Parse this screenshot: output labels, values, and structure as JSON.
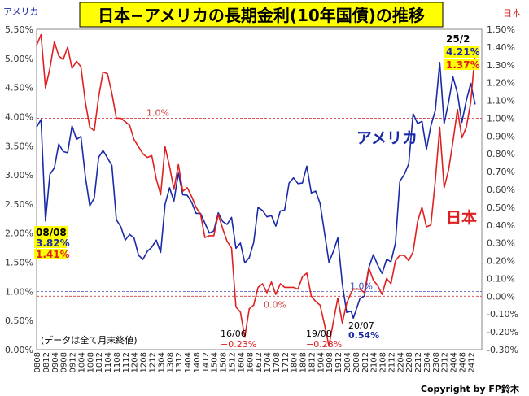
{
  "chart_data": {
    "type": "line",
    "title": "日本−アメリカの長期金利(10年国債)の推移",
    "left_axis_title": "アメリカ",
    "right_axis_title": "日本",
    "left_ylim": [
      0.0,
      5.5
    ],
    "right_ylim": [
      -0.3,
      1.5
    ],
    "left_ticks": [
      "0.00%",
      "0.50%",
      "1.00%",
      "1.50%",
      "2.00%",
      "2.50%",
      "3.00%",
      "3.50%",
      "4.00%",
      "4.50%",
      "5.00%",
      "5.50%"
    ],
    "right_ticks": [
      "-0.30%",
      "-0.20%",
      "-0.10%",
      "0.00%",
      "0.10%",
      "0.20%",
      "0.30%",
      "0.40%",
      "0.50%",
      "0.60%",
      "0.70%",
      "0.80%",
      "0.90%",
      "1.00%",
      "1.10%",
      "1.20%",
      "1.30%",
      "1.40%",
      "1.50%"
    ],
    "x_ticks": [
      "0808",
      "0812",
      "0904",
      "0908",
      "0912",
      "1004",
      "1008",
      "1012",
      "1104",
      "1108",
      "1112",
      "1204",
      "1208",
      "1212",
      "1304",
      "1308",
      "1312",
      "1404",
      "1408",
      "1412",
      "1504",
      "1508",
      "1512",
      "1604",
      "1608",
      "1612",
      "1704",
      "1708",
      "1712",
      "1804",
      "1808",
      "1812",
      "1904",
      "1908",
      "1912",
      "2004",
      "2008",
      "2012",
      "2104",
      "2108",
      "2112",
      "2204",
      "2208",
      "2212",
      "2304",
      "2308",
      "2312",
      "2404",
      "2408",
      "2412"
    ],
    "grid": false,
    "reference_lines": [
      {
        "label": "1.0%",
        "axis": "right",
        "value": 1.0,
        "color": "#d04040"
      },
      {
        "label": "1.0%",
        "axis": "left",
        "value": 1.0,
        "color": "#4050c0"
      },
      {
        "label": "0.0%",
        "axis": "right",
        "value": 0.0,
        "color": "#d04040"
      }
    ],
    "series": [
      {
        "name": "アメリカ",
        "axis": "left",
        "color": "#1a2aa8",
        "x": [
          "2008-08",
          "2008-10",
          "2008-12",
          "2009-02",
          "2009-04",
          "2009-06",
          "2009-08",
          "2009-10",
          "2009-12",
          "2010-02",
          "2010-04",
          "2010-06",
          "2010-08",
          "2010-10",
          "2010-12",
          "2011-02",
          "2011-04",
          "2011-06",
          "2011-08",
          "2011-10",
          "2011-12",
          "2012-02",
          "2012-04",
          "2012-06",
          "2012-08",
          "2012-10",
          "2012-12",
          "2013-02",
          "2013-04",
          "2013-06",
          "2013-08",
          "2013-10",
          "2013-12",
          "2014-02",
          "2014-04",
          "2014-06",
          "2014-08",
          "2014-10",
          "2014-12",
          "2015-02",
          "2015-04",
          "2015-06",
          "2015-08",
          "2015-10",
          "2015-12",
          "2016-02",
          "2016-04",
          "2016-06",
          "2016-08",
          "2016-10",
          "2016-12",
          "2017-02",
          "2017-04",
          "2017-06",
          "2017-08",
          "2017-10",
          "2017-12",
          "2018-02",
          "2018-04",
          "2018-06",
          "2018-08",
          "2018-10",
          "2018-12",
          "2019-02",
          "2019-04",
          "2019-06",
          "2019-08",
          "2019-10",
          "2019-12",
          "2020-02",
          "2020-04",
          "2020-06",
          "2020-07",
          "2020-10",
          "2020-12",
          "2021-02",
          "2021-04",
          "2021-06",
          "2021-08",
          "2021-10",
          "2021-12",
          "2022-02",
          "2022-04",
          "2022-06",
          "2022-08",
          "2022-10",
          "2022-12",
          "2023-02",
          "2023-04",
          "2023-06",
          "2023-08",
          "2023-10",
          "2023-12",
          "2024-02",
          "2024-04",
          "2024-06",
          "2024-08",
          "2024-10",
          "2024-12",
          "2025-02"
        ],
        "values": [
          3.82,
          3.95,
          2.21,
          3.01,
          3.12,
          3.53,
          3.4,
          3.38,
          3.84,
          3.61,
          3.66,
          2.97,
          2.47,
          2.6,
          3.3,
          3.42,
          3.29,
          3.16,
          2.23,
          2.11,
          1.88,
          1.98,
          1.92,
          1.62,
          1.55,
          1.69,
          1.76,
          1.88,
          1.67,
          2.49,
          2.78,
          2.55,
          3.03,
          2.66,
          2.65,
          2.53,
          2.34,
          2.34,
          2.17,
          2.0,
          2.04,
          2.35,
          2.2,
          2.15,
          2.27,
          1.74,
          1.83,
          1.49,
          1.58,
          1.84,
          2.44,
          2.39,
          2.28,
          2.3,
          2.12,
          2.38,
          2.4,
          2.86,
          2.95,
          2.85,
          2.86,
          3.15,
          2.69,
          2.72,
          2.51,
          2.0,
          1.5,
          1.69,
          1.92,
          1.13,
          0.64,
          0.66,
          0.54,
          0.88,
          0.92,
          1.41,
          1.63,
          1.45,
          1.31,
          1.55,
          1.51,
          1.83,
          2.89,
          3.01,
          3.19,
          4.05,
          3.88,
          3.92,
          3.44,
          3.84,
          4.11,
          4.93,
          3.88,
          4.25,
          4.68,
          4.4,
          3.9,
          4.28,
          4.57,
          4.21
        ]
      },
      {
        "name": "日本",
        "axis": "right",
        "color": "#e02020",
        "x": [
          "2008-08",
          "2008-10",
          "2008-12",
          "2009-02",
          "2009-04",
          "2009-06",
          "2009-08",
          "2009-10",
          "2009-12",
          "2010-02",
          "2010-04",
          "2010-06",
          "2010-08",
          "2010-10",
          "2010-12",
          "2011-02",
          "2011-04",
          "2011-06",
          "2011-08",
          "2011-10",
          "2011-12",
          "2012-02",
          "2012-04",
          "2012-06",
          "2012-08",
          "2012-10",
          "2012-12",
          "2013-02",
          "2013-04",
          "2013-06",
          "2013-08",
          "2013-10",
          "2013-12",
          "2014-02",
          "2014-04",
          "2014-06",
          "2014-08",
          "2014-10",
          "2014-12",
          "2015-02",
          "2015-04",
          "2015-06",
          "2015-08",
          "2015-10",
          "2015-12",
          "2016-02",
          "2016-04",
          "2016-06",
          "2016-08",
          "2016-10",
          "2016-12",
          "2017-02",
          "2017-04",
          "2017-06",
          "2017-08",
          "2017-10",
          "2017-12",
          "2018-02",
          "2018-04",
          "2018-06",
          "2018-08",
          "2018-10",
          "2018-12",
          "2019-02",
          "2019-04",
          "2019-06",
          "2019-08",
          "2019-10",
          "2019-12",
          "2020-02",
          "2020-04",
          "2020-06",
          "2020-07",
          "2020-10",
          "2020-12",
          "2021-02",
          "2021-04",
          "2021-06",
          "2021-08",
          "2021-10",
          "2021-12",
          "2022-02",
          "2022-04",
          "2022-06",
          "2022-08",
          "2022-10",
          "2022-12",
          "2023-02",
          "2023-04",
          "2023-06",
          "2023-08",
          "2023-10",
          "2023-12",
          "2024-02",
          "2024-04",
          "2024-06",
          "2024-08",
          "2024-10",
          "2024-12",
          "2025-02"
        ],
        "values": [
          1.41,
          1.47,
          1.17,
          1.28,
          1.43,
          1.35,
          1.33,
          1.4,
          1.28,
          1.32,
          1.29,
          1.09,
          0.95,
          0.93,
          1.12,
          1.26,
          1.25,
          1.14,
          1.0,
          1.0,
          0.98,
          0.96,
          0.88,
          0.84,
          0.8,
          0.78,
          0.79,
          0.66,
          0.57,
          0.84,
          0.73,
          0.6,
          0.74,
          0.59,
          0.61,
          0.56,
          0.5,
          0.46,
          0.33,
          0.34,
          0.34,
          0.46,
          0.38,
          0.31,
          0.27,
          -0.06,
          -0.09,
          -0.23,
          -0.07,
          -0.05,
          0.05,
          0.07,
          0.02,
          0.08,
          0.01,
          0.07,
          0.05,
          0.05,
          0.05,
          0.04,
          0.11,
          0.13,
          0.0,
          -0.03,
          -0.05,
          -0.16,
          -0.28,
          -0.14,
          -0.01,
          -0.15,
          -0.04,
          0.02,
          0.04,
          0.04,
          0.02,
          0.16,
          0.09,
          0.06,
          0.01,
          0.1,
          0.07,
          0.2,
          0.23,
          0.23,
          0.2,
          0.25,
          0.42,
          0.5,
          0.39,
          0.4,
          0.65,
          0.95,
          0.61,
          0.71,
          0.87,
          1.05,
          0.89,
          0.95,
          1.09,
          1.37
        ]
      }
    ],
    "annotations": [
      {
        "label": "08/08",
        "us": "3.82%",
        "jp": "1.41%"
      },
      {
        "label": "25/2",
        "us": "4.21%",
        "jp": "1.37%"
      },
      {
        "label": "16/06",
        "jp": "−0.23%"
      },
      {
        "label": "19/08",
        "jp": "−0.28%"
      },
      {
        "label": "20/07",
        "us": "0.54%"
      }
    ],
    "note": "(データは全て月末終値)",
    "credit": "Copyright by FP鈴木"
  }
}
